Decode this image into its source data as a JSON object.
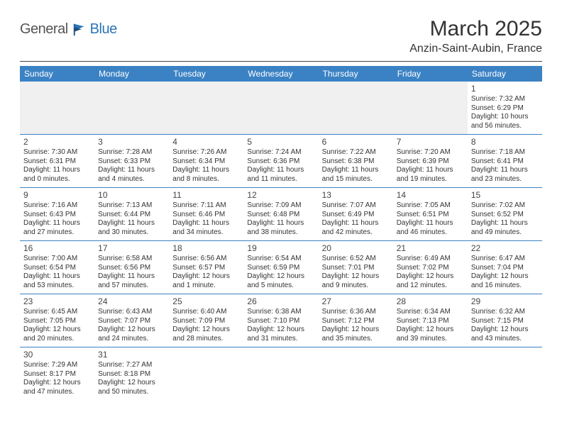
{
  "brand": {
    "part1": "General",
    "part2": "Blue"
  },
  "title": "March 2025",
  "location": "Anzin-Saint-Aubin, France",
  "colors": {
    "header_bg": "#3b82c4",
    "header_text": "#ffffff",
    "rule": "#3b82c4",
    "brand_blue": "#2b74b8",
    "text": "#333333",
    "background": "#ffffff"
  },
  "dayNames": [
    "Sunday",
    "Monday",
    "Tuesday",
    "Wednesday",
    "Thursday",
    "Friday",
    "Saturday"
  ],
  "weeks": [
    [
      null,
      null,
      null,
      null,
      null,
      null,
      {
        "n": "1",
        "sunrise": "Sunrise: 7:32 AM",
        "sunset": "Sunset: 6:29 PM",
        "daylight": "Daylight: 10 hours and 56 minutes."
      }
    ],
    [
      {
        "n": "2",
        "sunrise": "Sunrise: 7:30 AM",
        "sunset": "Sunset: 6:31 PM",
        "daylight": "Daylight: 11 hours and 0 minutes."
      },
      {
        "n": "3",
        "sunrise": "Sunrise: 7:28 AM",
        "sunset": "Sunset: 6:33 PM",
        "daylight": "Daylight: 11 hours and 4 minutes."
      },
      {
        "n": "4",
        "sunrise": "Sunrise: 7:26 AM",
        "sunset": "Sunset: 6:34 PM",
        "daylight": "Daylight: 11 hours and 8 minutes."
      },
      {
        "n": "5",
        "sunrise": "Sunrise: 7:24 AM",
        "sunset": "Sunset: 6:36 PM",
        "daylight": "Daylight: 11 hours and 11 minutes."
      },
      {
        "n": "6",
        "sunrise": "Sunrise: 7:22 AM",
        "sunset": "Sunset: 6:38 PM",
        "daylight": "Daylight: 11 hours and 15 minutes."
      },
      {
        "n": "7",
        "sunrise": "Sunrise: 7:20 AM",
        "sunset": "Sunset: 6:39 PM",
        "daylight": "Daylight: 11 hours and 19 minutes."
      },
      {
        "n": "8",
        "sunrise": "Sunrise: 7:18 AM",
        "sunset": "Sunset: 6:41 PM",
        "daylight": "Daylight: 11 hours and 23 minutes."
      }
    ],
    [
      {
        "n": "9",
        "sunrise": "Sunrise: 7:16 AM",
        "sunset": "Sunset: 6:43 PM",
        "daylight": "Daylight: 11 hours and 27 minutes."
      },
      {
        "n": "10",
        "sunrise": "Sunrise: 7:13 AM",
        "sunset": "Sunset: 6:44 PM",
        "daylight": "Daylight: 11 hours and 30 minutes."
      },
      {
        "n": "11",
        "sunrise": "Sunrise: 7:11 AM",
        "sunset": "Sunset: 6:46 PM",
        "daylight": "Daylight: 11 hours and 34 minutes."
      },
      {
        "n": "12",
        "sunrise": "Sunrise: 7:09 AM",
        "sunset": "Sunset: 6:48 PM",
        "daylight": "Daylight: 11 hours and 38 minutes."
      },
      {
        "n": "13",
        "sunrise": "Sunrise: 7:07 AM",
        "sunset": "Sunset: 6:49 PM",
        "daylight": "Daylight: 11 hours and 42 minutes."
      },
      {
        "n": "14",
        "sunrise": "Sunrise: 7:05 AM",
        "sunset": "Sunset: 6:51 PM",
        "daylight": "Daylight: 11 hours and 46 minutes."
      },
      {
        "n": "15",
        "sunrise": "Sunrise: 7:02 AM",
        "sunset": "Sunset: 6:52 PM",
        "daylight": "Daylight: 11 hours and 49 minutes."
      }
    ],
    [
      {
        "n": "16",
        "sunrise": "Sunrise: 7:00 AM",
        "sunset": "Sunset: 6:54 PM",
        "daylight": "Daylight: 11 hours and 53 minutes."
      },
      {
        "n": "17",
        "sunrise": "Sunrise: 6:58 AM",
        "sunset": "Sunset: 6:56 PM",
        "daylight": "Daylight: 11 hours and 57 minutes."
      },
      {
        "n": "18",
        "sunrise": "Sunrise: 6:56 AM",
        "sunset": "Sunset: 6:57 PM",
        "daylight": "Daylight: 12 hours and 1 minute."
      },
      {
        "n": "19",
        "sunrise": "Sunrise: 6:54 AM",
        "sunset": "Sunset: 6:59 PM",
        "daylight": "Daylight: 12 hours and 5 minutes."
      },
      {
        "n": "20",
        "sunrise": "Sunrise: 6:52 AM",
        "sunset": "Sunset: 7:01 PM",
        "daylight": "Daylight: 12 hours and 9 minutes."
      },
      {
        "n": "21",
        "sunrise": "Sunrise: 6:49 AM",
        "sunset": "Sunset: 7:02 PM",
        "daylight": "Daylight: 12 hours and 12 minutes."
      },
      {
        "n": "22",
        "sunrise": "Sunrise: 6:47 AM",
        "sunset": "Sunset: 7:04 PM",
        "daylight": "Daylight: 12 hours and 16 minutes."
      }
    ],
    [
      {
        "n": "23",
        "sunrise": "Sunrise: 6:45 AM",
        "sunset": "Sunset: 7:05 PM",
        "daylight": "Daylight: 12 hours and 20 minutes."
      },
      {
        "n": "24",
        "sunrise": "Sunrise: 6:43 AM",
        "sunset": "Sunset: 7:07 PM",
        "daylight": "Daylight: 12 hours and 24 minutes."
      },
      {
        "n": "25",
        "sunrise": "Sunrise: 6:40 AM",
        "sunset": "Sunset: 7:09 PM",
        "daylight": "Daylight: 12 hours and 28 minutes."
      },
      {
        "n": "26",
        "sunrise": "Sunrise: 6:38 AM",
        "sunset": "Sunset: 7:10 PM",
        "daylight": "Daylight: 12 hours and 31 minutes."
      },
      {
        "n": "27",
        "sunrise": "Sunrise: 6:36 AM",
        "sunset": "Sunset: 7:12 PM",
        "daylight": "Daylight: 12 hours and 35 minutes."
      },
      {
        "n": "28",
        "sunrise": "Sunrise: 6:34 AM",
        "sunset": "Sunset: 7:13 PM",
        "daylight": "Daylight: 12 hours and 39 minutes."
      },
      {
        "n": "29",
        "sunrise": "Sunrise: 6:32 AM",
        "sunset": "Sunset: 7:15 PM",
        "daylight": "Daylight: 12 hours and 43 minutes."
      }
    ],
    [
      {
        "n": "30",
        "sunrise": "Sunrise: 7:29 AM",
        "sunset": "Sunset: 8:17 PM",
        "daylight": "Daylight: 12 hours and 47 minutes."
      },
      {
        "n": "31",
        "sunrise": "Sunrise: 7:27 AM",
        "sunset": "Sunset: 8:18 PM",
        "daylight": "Daylight: 12 hours and 50 minutes."
      },
      null,
      null,
      null,
      null,
      null
    ]
  ]
}
